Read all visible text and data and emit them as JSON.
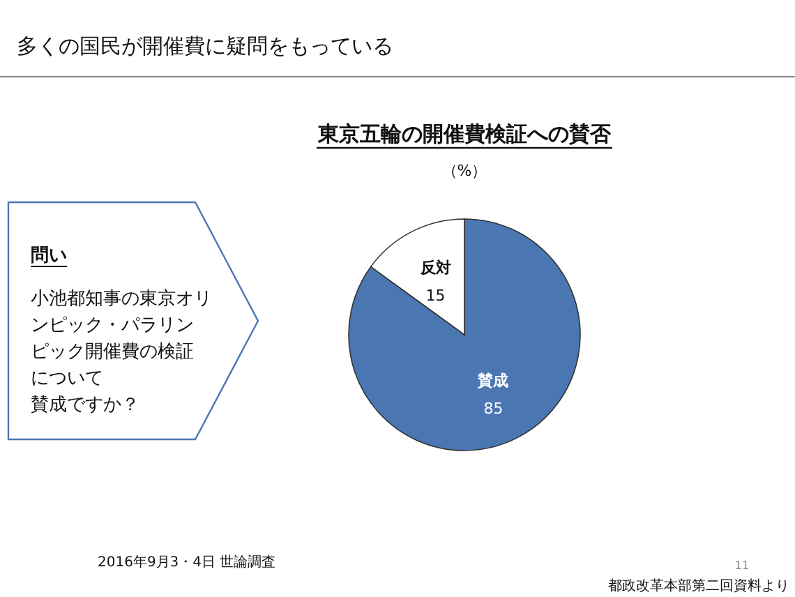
{
  "chart_data": {
    "type": "pie",
    "title": "多くの国民が開催費に疑問をもっている",
    "subtitle": "東京五輪の開催費検証への賛否",
    "categories": [
      "賛成",
      "反対"
    ],
    "values": [
      85,
      15
    ],
    "colors": [
      "#4a76b2",
      "#ffffff"
    ],
    "data_labels": true,
    "annotations": [
      "（%）",
      "問い",
      "2016年9月3・4日 世論調査",
      "11",
      "都政改革本部第二回資料より",
      "小池都知事の東京オリ",
      "ンピック・パラリン",
      "ピック開催費の検証",
      "について",
      "賛成ですか？"
    ]
  }
}
